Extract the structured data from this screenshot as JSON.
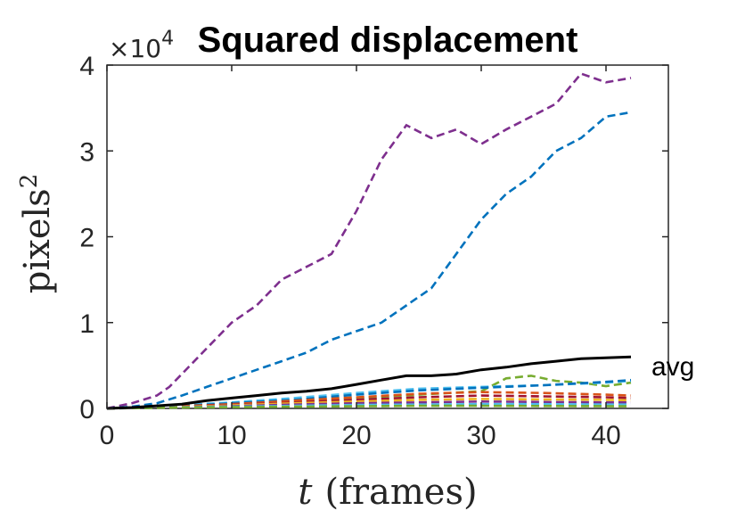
{
  "chart_data": {
    "type": "line",
    "title": "Squared displacement",
    "xlabel_var": "t",
    "xlabel_unit": "(frames)",
    "ylabel_base": "pixels",
    "ylabel_sup": "2",
    "y_multiplier": "×10",
    "y_multiplier_exp": "4",
    "xlim": [
      0,
      45
    ],
    "ylim": [
      0,
      40000
    ],
    "xticks": [
      0,
      10,
      20,
      30,
      40
    ],
    "yticks": [
      0,
      10000,
      20000,
      30000,
      40000
    ],
    "ytick_labels": [
      "0",
      "1",
      "2",
      "3",
      "4"
    ],
    "grid": false,
    "legend": "none",
    "annotation": {
      "text": "avg",
      "x": 43,
      "y": 5000
    },
    "series": [
      {
        "color": "#7e2f8e",
        "style": "dashed",
        "x": [
          0,
          2,
          4,
          5,
          6,
          8,
          10,
          12,
          14,
          16,
          18,
          20,
          22,
          24,
          26,
          28,
          30,
          32,
          34,
          36,
          38,
          40,
          42
        ],
        "y": [
          0,
          600,
          1500,
          2500,
          4000,
          7000,
          10000,
          12000,
          15000,
          16500,
          18000,
          23000,
          29000,
          33000,
          31500,
          32500,
          30800,
          32500,
          34000,
          35500,
          39000,
          38000,
          38500
        ]
      },
      {
        "color": "#0072bd",
        "style": "dashed",
        "x": [
          0,
          2,
          4,
          6,
          8,
          10,
          12,
          14,
          16,
          18,
          20,
          22,
          24,
          26,
          28,
          30,
          32,
          34,
          36,
          38,
          40,
          42
        ],
        "y": [
          0,
          200,
          600,
          1500,
          2500,
          3500,
          4500,
          5500,
          6500,
          8000,
          9000,
          10000,
          12000,
          14000,
          18000,
          22000,
          25000,
          27000,
          30000,
          31500,
          34000,
          34500
        ]
      },
      {
        "color": "#77ac30",
        "style": "dashed",
        "x": [
          0,
          5,
          10,
          15,
          20,
          25,
          30,
          32,
          34,
          36,
          38,
          40,
          42
        ],
        "y": [
          0,
          200,
          400,
          700,
          1200,
          1600,
          2000,
          3500,
          3800,
          3200,
          3000,
          2600,
          3000
        ]
      },
      {
        "color": "#4dbeee",
        "style": "dashed",
        "x": [
          0,
          5,
          10,
          15,
          20,
          25,
          30,
          35,
          40,
          42
        ],
        "y": [
          0,
          300,
          700,
          1200,
          1800,
          2300,
          2500,
          2700,
          3000,
          3200
        ]
      },
      {
        "color": "#0072bd",
        "style": "dashed",
        "x": [
          0,
          5,
          10,
          15,
          20,
          25,
          30,
          35,
          40,
          42
        ],
        "y": [
          0,
          200,
          600,
          1000,
          1600,
          2100,
          2400,
          2700,
          3100,
          3300
        ]
      },
      {
        "color": "#d95319",
        "style": "dashed",
        "x": [
          0,
          5,
          10,
          15,
          20,
          25,
          30,
          35,
          40,
          42
        ],
        "y": [
          0,
          200,
          500,
          900,
          1300,
          1700,
          1900,
          1800,
          1600,
          1500
        ]
      },
      {
        "color": "#a2142f",
        "style": "dashed",
        "x": [
          0,
          5,
          10,
          15,
          20,
          25,
          30,
          35,
          40,
          42
        ],
        "y": [
          0,
          200,
          400,
          700,
          1000,
          1300,
          1500,
          1400,
          1300,
          1200
        ]
      },
      {
        "color": "#edb120",
        "style": "dashed",
        "x": [
          0,
          5,
          10,
          15,
          20,
          25,
          30,
          35,
          40,
          42
        ],
        "y": [
          0,
          150,
          350,
          600,
          800,
          1000,
          1100,
          1050,
          1000,
          950
        ]
      },
      {
        "color": "#7e2f8e",
        "style": "dashed",
        "x": [
          0,
          5,
          10,
          15,
          20,
          25,
          30,
          35,
          40,
          42
        ],
        "y": [
          0,
          100,
          250,
          450,
          600,
          700,
          800,
          750,
          700,
          700
        ]
      },
      {
        "color": "#4dbeee",
        "style": "dashed",
        "x": [
          0,
          5,
          10,
          15,
          20,
          25,
          30,
          35,
          40,
          42
        ],
        "y": [
          0,
          100,
          200,
          300,
          400,
          450,
          500,
          500,
          450,
          450
        ]
      },
      {
        "color": "#77ac30",
        "style": "dashed",
        "x": [
          0,
          5,
          10,
          15,
          20,
          25,
          30,
          35,
          40,
          42
        ],
        "y": [
          0,
          80,
          150,
          200,
          250,
          300,
          300,
          280,
          260,
          250
        ]
      },
      {
        "color": "#000000",
        "style": "solid",
        "x": [
          0,
          2,
          4,
          6,
          8,
          10,
          12,
          14,
          16,
          18,
          20,
          22,
          24,
          26,
          28,
          30,
          32,
          34,
          36,
          38,
          40,
          42
        ],
        "y": [
          0,
          100,
          300,
          500,
          900,
          1200,
          1500,
          1800,
          2000,
          2300,
          2800,
          3300,
          3800,
          3800,
          4000,
          4500,
          4800,
          5200,
          5500,
          5800,
          5900,
          6000
        ]
      }
    ]
  }
}
